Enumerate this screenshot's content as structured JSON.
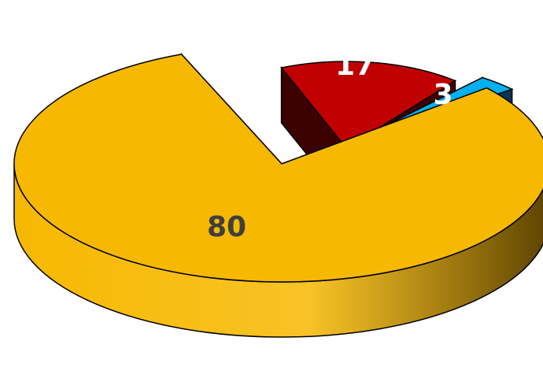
{
  "chart_data": {
    "type": "pie",
    "style": "3d-exploded",
    "title": "",
    "legend": "none",
    "slices": [
      {
        "label": "",
        "value": 80,
        "data_label": "80",
        "color": "#F7B800",
        "side_color_dark": "#5B4200",
        "label_color": "#3F3F3F"
      },
      {
        "label": "",
        "value": 17,
        "data_label": "17",
        "color": "#C00000",
        "side_color_dark": "#3D0000",
        "label_color": "#FFFFFF"
      },
      {
        "label": "",
        "value": 3,
        "data_label": "3",
        "color": "#00B0F0",
        "side_color_dark": "#0B3554",
        "label_color": "#FFFFFF"
      }
    ]
  }
}
